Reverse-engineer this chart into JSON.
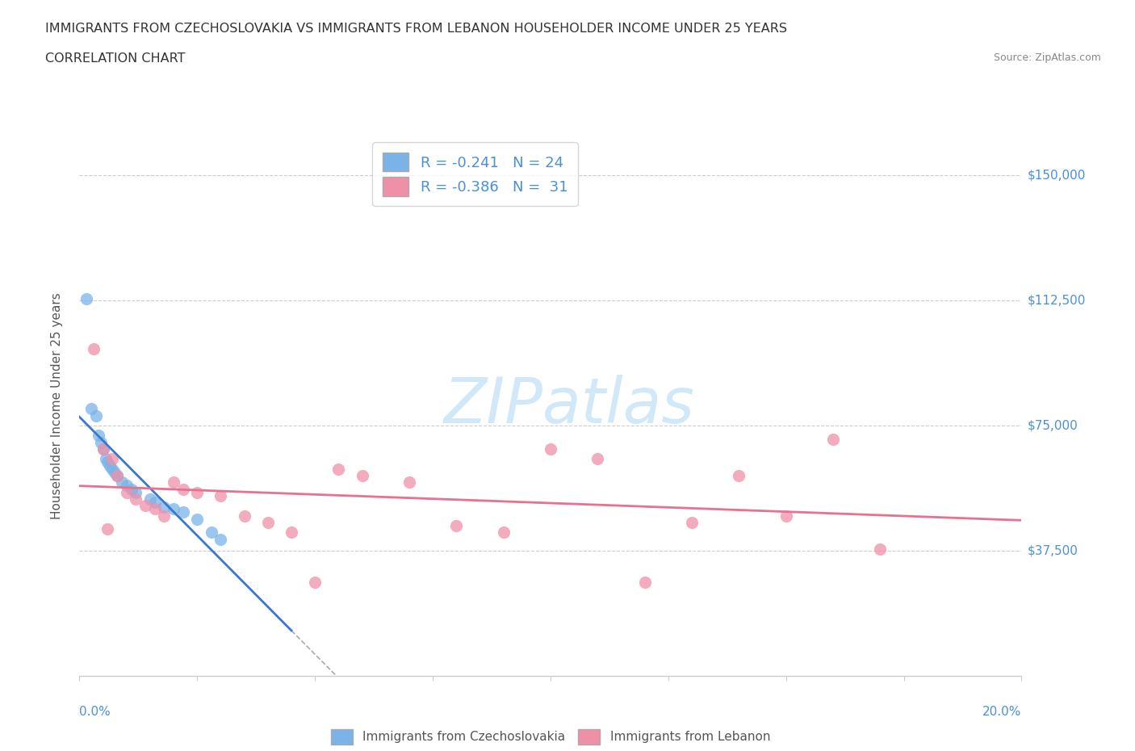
{
  "title_line1": "IMMIGRANTS FROM CZECHOSLOVAKIA VS IMMIGRANTS FROM LEBANON HOUSEHOLDER INCOME UNDER 25 YEARS",
  "title_line2": "CORRELATION CHART",
  "source": "Source: ZipAtlas.com",
  "ylabel": "Householder Income Under 25 years",
  "ytick_labels": [
    "$37,500",
    "$75,000",
    "$112,500",
    "$150,000"
  ],
  "ytick_values": [
    37500,
    75000,
    112500,
    150000
  ],
  "xlim": [
    0.0,
    20.0
  ],
  "ylim": [
    0,
    162000
  ],
  "legend_label1": "Immigrants from Czechoslovakia",
  "legend_label2": "Immigrants from Lebanon",
  "czecho_color": "#7ab3e8",
  "lebanon_color": "#f090a8",
  "czecho_line_color": "#3a78c9",
  "lebanon_line_color": "#e87090",
  "watermark_color": "#d0e8f8",
  "watermark_text": "ZIPatlas",
  "czecho_points": [
    [
      0.15,
      113000
    ],
    [
      0.25,
      80000
    ],
    [
      0.35,
      78000
    ],
    [
      0.4,
      72000
    ],
    [
      0.45,
      70000
    ],
    [
      0.5,
      68000
    ],
    [
      0.55,
      65000
    ],
    [
      0.6,
      64000
    ],
    [
      0.65,
      63000
    ],
    [
      0.7,
      62000
    ],
    [
      0.75,
      61000
    ],
    [
      0.8,
      60000
    ],
    [
      0.9,
      58000
    ],
    [
      1.0,
      57000
    ],
    [
      1.1,
      56000
    ],
    [
      1.2,
      55000
    ],
    [
      1.5,
      53000
    ],
    [
      1.6,
      52000
    ],
    [
      1.8,
      50500
    ],
    [
      2.0,
      50000
    ],
    [
      2.2,
      49000
    ],
    [
      2.5,
      47000
    ],
    [
      2.8,
      43000
    ],
    [
      3.0,
      41000
    ]
  ],
  "lebanon_points": [
    [
      0.3,
      98000
    ],
    [
      0.5,
      68000
    ],
    [
      0.7,
      65000
    ],
    [
      0.8,
      60000
    ],
    [
      1.0,
      55000
    ],
    [
      1.2,
      53000
    ],
    [
      1.4,
      51000
    ],
    [
      1.6,
      50000
    ],
    [
      1.8,
      48000
    ],
    [
      2.0,
      58000
    ],
    [
      2.2,
      56000
    ],
    [
      2.5,
      55000
    ],
    [
      3.0,
      54000
    ],
    [
      3.5,
      48000
    ],
    [
      4.0,
      46000
    ],
    [
      4.5,
      43000
    ],
    [
      5.0,
      28000
    ],
    [
      5.5,
      62000
    ],
    [
      6.0,
      60000
    ],
    [
      7.0,
      58000
    ],
    [
      8.0,
      45000
    ],
    [
      9.0,
      43000
    ],
    [
      10.0,
      68000
    ],
    [
      11.0,
      65000
    ],
    [
      12.0,
      28000
    ],
    [
      13.0,
      46000
    ],
    [
      14.0,
      60000
    ],
    [
      15.0,
      48000
    ],
    [
      16.0,
      71000
    ],
    [
      17.0,
      38000
    ],
    [
      0.6,
      44000
    ]
  ],
  "czecho_trend_xrange": [
    0.0,
    4.5
  ],
  "lebanon_trend_xrange": [
    0.0,
    20.0
  ],
  "czecho_dash_xrange": [
    4.5,
    13.0
  ]
}
